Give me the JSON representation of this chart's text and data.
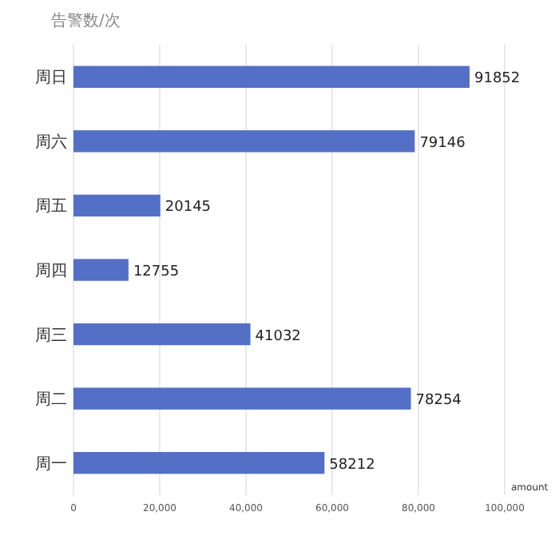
{
  "chart_data": {
    "type": "bar",
    "orientation": "horizontal",
    "ylabel": "告警数/次",
    "xlabel": "amount",
    "categories": [
      "周日",
      "周六",
      "周五",
      "周四",
      "周三",
      "周二",
      "周一"
    ],
    "series": [
      {
        "color": "#5470c6",
        "values": [
          91852,
          79146,
          20145,
          12755,
          41032,
          78254,
          58212
        ]
      }
    ],
    "xlim": [
      0,
      100000
    ],
    "xticks": [
      {
        "value": 0,
        "label": "0"
      },
      {
        "value": 20000,
        "label": "20,000"
      },
      {
        "value": 40000,
        "label": "40,000"
      },
      {
        "value": 60000,
        "label": "60,000"
      },
      {
        "value": 80000,
        "label": "80,000"
      },
      {
        "value": 100000,
        "label": "100,000"
      }
    ],
    "grid": "x",
    "data_labels": true
  }
}
